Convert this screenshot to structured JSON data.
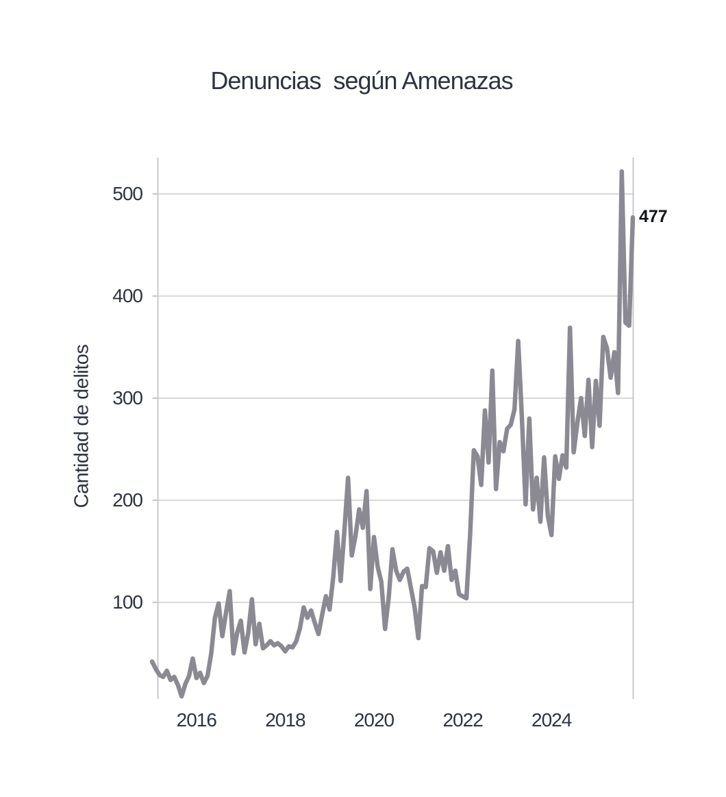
{
  "title": "Denuncias  según Amenazas",
  "y_axis": {
    "label": "Cantidad de delitos",
    "ticks": [
      100,
      200,
      300,
      400,
      500
    ]
  },
  "x_axis": {
    "ticks": [
      {
        "label": "2016",
        "month_index": 12
      },
      {
        "label": "2018",
        "month_index": 36
      },
      {
        "label": "2020",
        "month_index": 60
      },
      {
        "label": "2022",
        "month_index": 84
      },
      {
        "label": "2024",
        "month_index": 108
      }
    ]
  },
  "annotation": {
    "text": "477"
  },
  "colors": {
    "line": "#8b8a93",
    "grid": "#d8d8db",
    "axis": "#c8c8cd",
    "text": "#2d3340",
    "annotation": "#141519"
  },
  "chart_data": {
    "type": "line",
    "title": "Denuncias  según Amenazas",
    "xlabel": "",
    "ylabel": "Cantidad de delitos",
    "x_start": "2015-01",
    "x_end": "2025-11",
    "frequency": "monthly",
    "x_tick_labels": [
      "2016",
      "2018",
      "2020",
      "2022",
      "2024"
    ],
    "y_ticks": [
      100,
      200,
      300,
      400,
      500
    ],
    "ylim": [
      0,
      535
    ],
    "grid": "horizontal",
    "legend": "none",
    "last_value_label": "477",
    "series": [
      {
        "name": "Amenazas",
        "values": [
          42,
          35,
          29,
          27,
          33,
          24,
          27,
          19,
          8,
          20,
          28,
          45,
          26,
          31,
          21,
          28,
          50,
          85,
          99,
          67,
          90,
          111,
          50,
          70,
          82,
          51,
          70,
          103,
          59,
          79,
          55,
          58,
          62,
          58,
          60,
          57,
          52,
          57,
          56,
          62,
          75,
          95,
          85,
          92,
          80,
          69,
          88,
          106,
          93,
          125,
          169,
          121,
          170,
          222,
          146,
          165,
          191,
          173,
          209,
          113,
          164,
          135,
          120,
          74,
          105,
          152,
          131,
          122,
          130,
          133,
          114,
          95,
          65,
          116,
          115,
          153,
          150,
          129,
          149,
          131,
          155,
          122,
          131,
          108,
          106,
          104,
          166,
          249,
          243,
          215,
          288,
          237,
          327,
          211,
          257,
          248,
          270,
          274,
          289,
          356,
          281,
          196,
          280,
          191,
          222,
          179,
          242,
          185,
          166,
          243,
          221,
          244,
          232,
          369,
          247,
          276,
          300,
          263,
          318,
          252,
          317,
          273,
          360,
          349,
          320,
          345,
          305,
          522,
          374,
          371,
          477
        ]
      }
    ]
  }
}
